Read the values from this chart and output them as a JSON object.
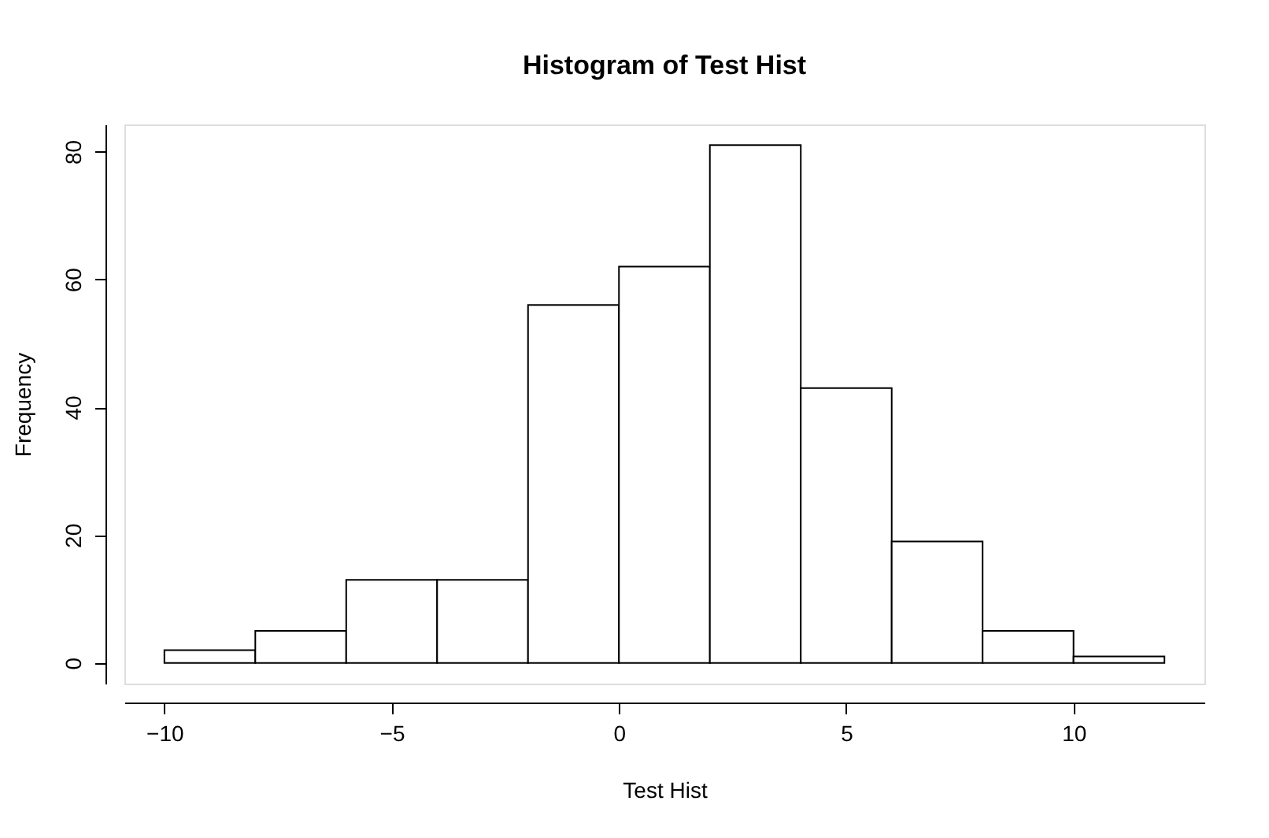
{
  "chart_data": {
    "type": "histogram",
    "title": "Histogram of Test Hist",
    "xlabel": "Test Hist",
    "ylabel": "Frequency",
    "bins": [
      -10,
      -8,
      -6,
      -4,
      -2,
      0,
      2,
      4,
      6,
      8,
      10,
      12
    ],
    "values": [
      2,
      5,
      13,
      13,
      56,
      62,
      81,
      43,
      19,
      5,
      1
    ],
    "color": "#ffffff",
    "xlim": [
      -10.88,
      12.88
    ],
    "xticks": [
      -10,
      -5,
      0,
      5,
      10
    ],
    "ylim": [
      -3.24,
      84.24
    ],
    "yticks": [
      0,
      20,
      40,
      60,
      80
    ],
    "grid": false
  }
}
